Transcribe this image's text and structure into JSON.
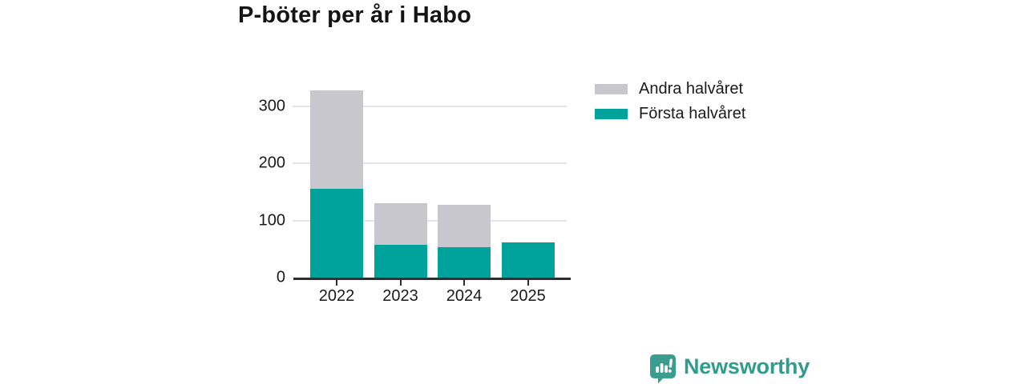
{
  "title": "P-böter per år i Habo",
  "chart_data": {
    "type": "bar",
    "stacked": true,
    "title": "P-böter per år i Habo",
    "categories": [
      "2022",
      "2023",
      "2024",
      "2025"
    ],
    "series": [
      {
        "name": "Första halvåret",
        "color": "#00a39b",
        "values": [
          155,
          58,
          53,
          62
        ]
      },
      {
        "name": "Andra halvåret",
        "color": "#c8c7cd",
        "values": [
          173,
          72,
          74,
          0
        ]
      }
    ],
    "yticks": [
      0,
      100,
      200,
      300
    ],
    "ylim": [
      0,
      340
    ],
    "xlabel": "",
    "ylabel": "",
    "grid": true,
    "legend_position": "right-of-plot",
    "axis_color": "#2d2d2d",
    "gridline_color": "#e4e4e4",
    "tick_label_color": "#1a1a1a"
  },
  "legend": {
    "items": [
      {
        "label": "Andra halvåret",
        "color": "#c8c7cd"
      },
      {
        "label": "Första halvåret",
        "color": "#00a39b"
      }
    ]
  },
  "branding": {
    "name": "Newsworthy",
    "color": "#2f9c8e",
    "icon": "newsworthy-logo-icon"
  }
}
